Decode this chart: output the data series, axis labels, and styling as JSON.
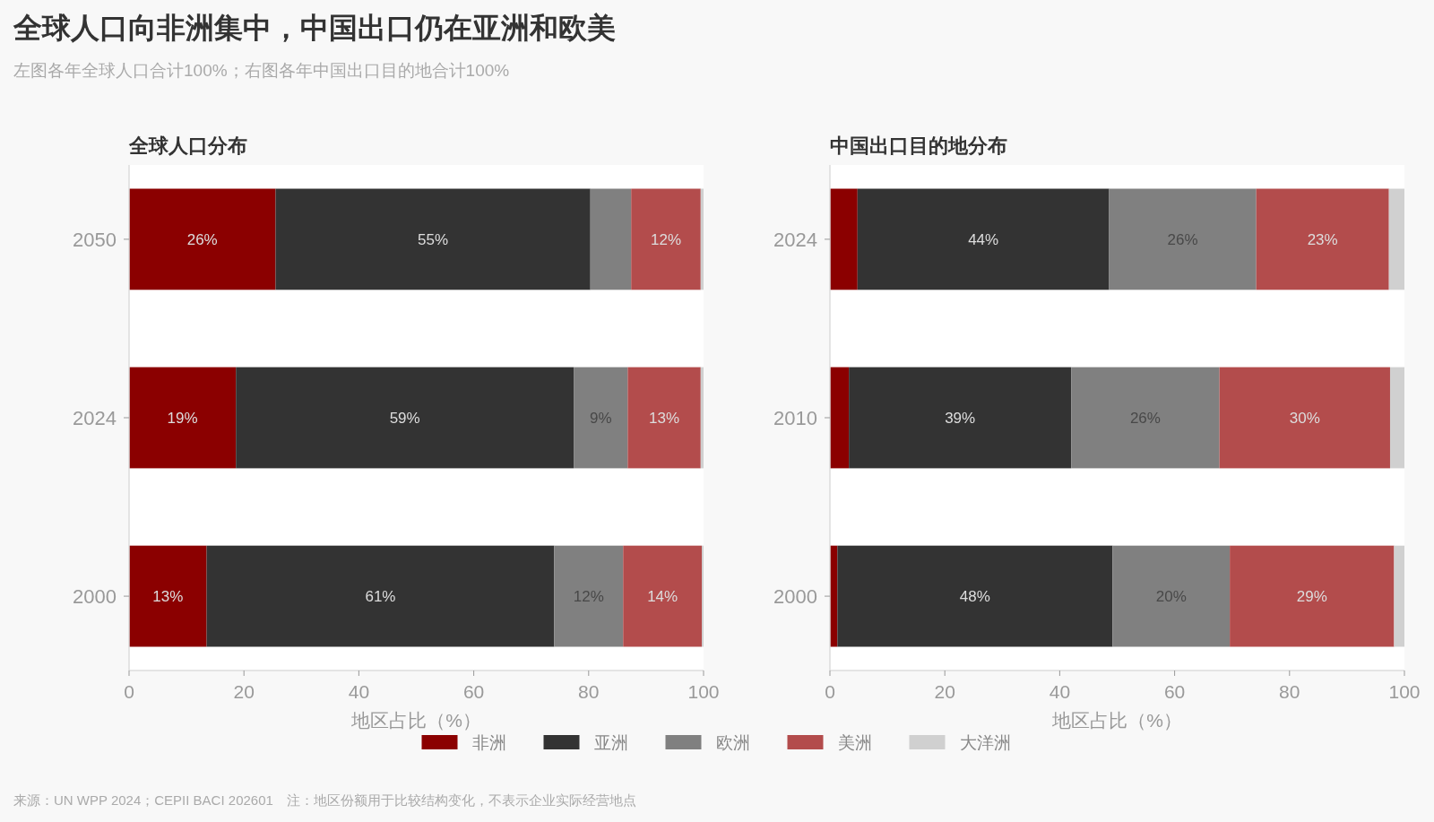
{
  "chart_data": [
    {
      "type": "other",
      "title": "全球人口向非洲集中，中国出口仍在亚洲和欧美",
      "subtitle": "左图各年全球人口合计100%；右图各年中国出口目的地合计100%",
      "annotations": [
        "来源：UN WPP 2024；CEPII BACI 202601　注：地区份额用于比较结构变化，不表示企业实际经营地点"
      ]
    },
    {
      "type": "bar",
      "orientation": "horizontal",
      "stacked": true,
      "title": "全球人口分布",
      "xlabel": "地区占比（%）",
      "categories": [
        "2050",
        "2024",
        "2000"
      ],
      "xlim": [
        0,
        100
      ],
      "xticks": [
        0,
        20,
        40,
        60,
        80,
        100
      ],
      "grid": false,
      "legend": "bottom",
      "series": [
        {
          "name": "非洲",
          "color": "#8b0000",
          "values": [
            25.5,
            18.6,
            13.5
          ],
          "value_labels": [
            "26%",
            "19%",
            "13%"
          ]
        },
        {
          "name": "亚洲",
          "color": "#333333",
          "values": [
            54.8,
            58.8,
            60.5
          ],
          "value_labels": [
            "55%",
            "59%",
            "61%"
          ]
        },
        {
          "name": "欧洲",
          "color": "#808080",
          "values": [
            7.1,
            9.4,
            12.0
          ],
          "value_labels": [
            null,
            "9%",
            "12%"
          ]
        },
        {
          "name": "美洲",
          "color": "#b34c4c",
          "values": [
            12.1,
            12.7,
            13.7
          ],
          "value_labels": [
            "12%",
            "13%",
            "14%"
          ]
        },
        {
          "name": "大洋洲",
          "color": "#d0d0d0",
          "values": [
            0.5,
            0.5,
            0.3
          ],
          "value_labels": [
            null,
            null,
            null
          ]
        }
      ]
    },
    {
      "type": "bar",
      "orientation": "horizontal",
      "stacked": true,
      "title": "中国出口目的地分布",
      "xlabel": "地区占比（%）",
      "categories": [
        "2024",
        "2010",
        "2000"
      ],
      "xlim": [
        0,
        100
      ],
      "xticks": [
        0,
        20,
        40,
        60,
        80,
        100
      ],
      "grid": false,
      "series": [
        {
          "color": "#8b0000",
          "values": [
            4.8,
            3.3,
            1.3
          ],
          "value_labels": [
            null,
            null,
            null
          ]
        },
        {
          "color": "#333333",
          "values": [
            43.8,
            38.7,
            47.9
          ],
          "value_labels": [
            "44%",
            "39%",
            "48%"
          ]
        },
        {
          "color": "#808080",
          "values": [
            25.6,
            25.8,
            20.4
          ],
          "value_labels": [
            "26%",
            "26%",
            "20%"
          ]
        },
        {
          "color": "#b34c4c",
          "values": [
            23.1,
            29.7,
            28.6
          ],
          "value_labels": [
            "23%",
            "30%",
            "29%"
          ]
        },
        {
          "color": "#d0d0d0",
          "values": [
            2.7,
            2.5,
            1.8
          ],
          "value_labels": [
            null,
            null,
            null
          ]
        }
      ]
    }
  ]
}
